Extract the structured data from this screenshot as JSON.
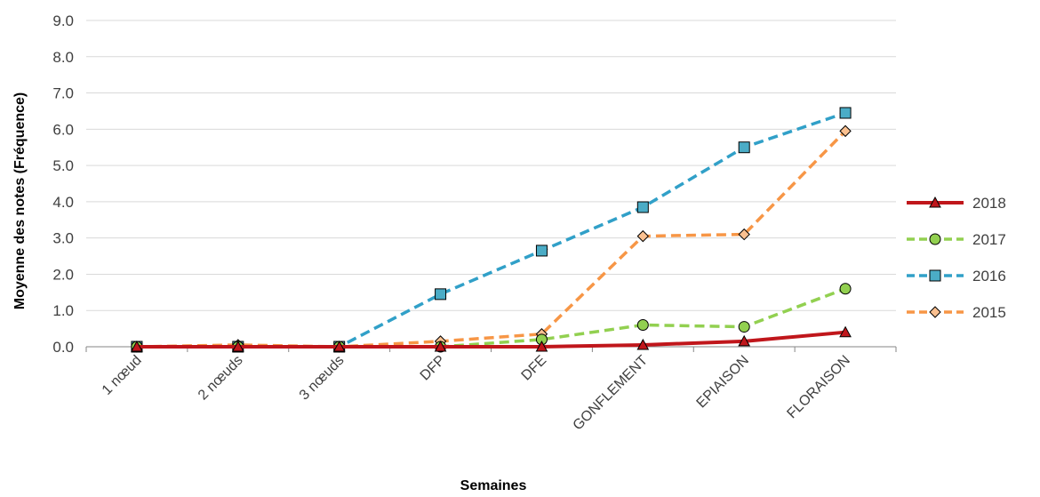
{
  "chart_data": {
    "type": "line",
    "categories": [
      "1 nœud",
      "2 nœuds",
      "3 nœuds",
      "DFP",
      "DFE",
      "GONFLEMENT",
      "EPIAISON",
      "FLORAISON"
    ],
    "series": [
      {
        "name": "2018",
        "values": [
          0.0,
          0.0,
          0.0,
          0.0,
          0.0,
          0.05,
          0.15,
          0.4
        ],
        "color": "#C0161B",
        "dash": "solid",
        "marker": "triangle",
        "marker_fill": "#C0161B"
      },
      {
        "name": "2017",
        "values": [
          0.0,
          0.0,
          0.0,
          0.0,
          0.2,
          0.6,
          0.55,
          1.6
        ],
        "color": "#92D050",
        "dash": "dashed",
        "marker": "circle",
        "marker_fill": "#92D050"
      },
      {
        "name": "2016",
        "values": [
          0.0,
          0.0,
          0.0,
          1.45,
          2.65,
          3.85,
          5.5,
          6.45
        ],
        "color": "#31A0C8",
        "dash": "dashed",
        "marker": "square",
        "marker_fill": "#4BACC6"
      },
      {
        "name": "2015",
        "values": [
          0.0,
          0.05,
          0.0,
          0.15,
          0.35,
          3.05,
          3.1,
          5.95
        ],
        "color": "#F79646",
        "dash": "dashed",
        "marker": "diamond",
        "marker_fill": "#FAC090"
      }
    ],
    "yticks": [
      "0.0",
      "1.0",
      "2.0",
      "3.0",
      "4.0",
      "5.0",
      "6.0",
      "7.0",
      "8.0",
      "9.0"
    ],
    "ylim": [
      0,
      9
    ],
    "xlabel": "Semaines",
    "ylabel": "Moyenne des notes (Fréquence)",
    "grid": true,
    "legend_position": "right"
  }
}
